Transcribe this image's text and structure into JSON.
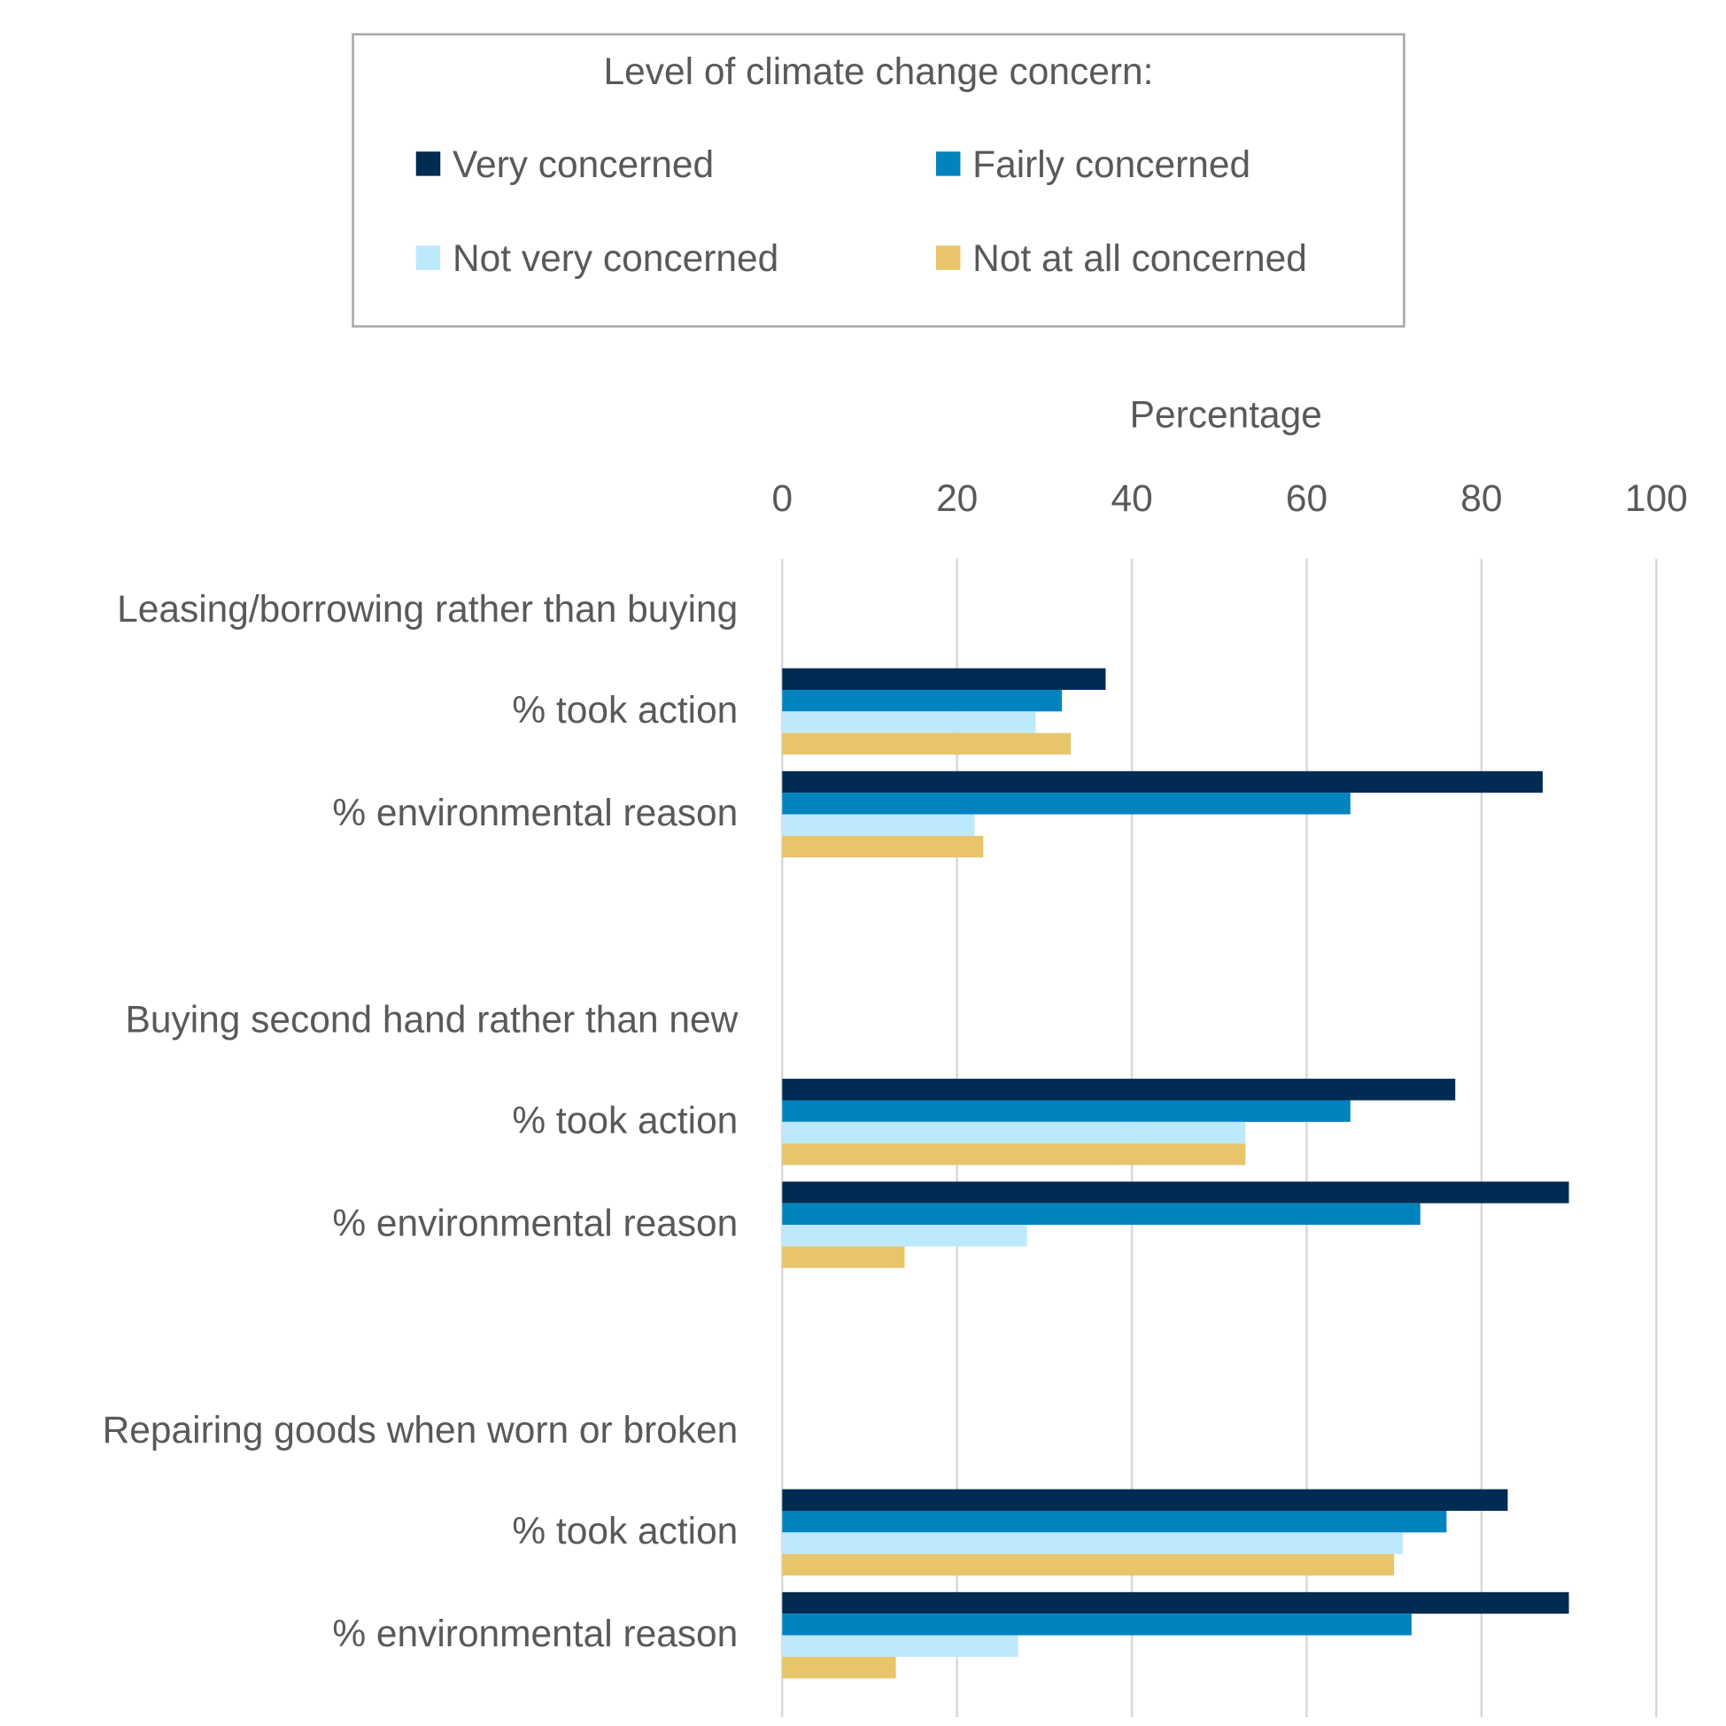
{
  "chart_data": {
    "type": "bar",
    "orientation": "horizontal",
    "xlabel": "Percentage",
    "xlim": [
      0,
      100
    ],
    "xticks": [
      "0",
      "20",
      "40",
      "60",
      "80",
      "100"
    ],
    "grid": true,
    "legend": {
      "title": "Level of climate change concern:",
      "placement": "top"
    },
    "groups": [
      {
        "label": "Leasing/borrowing rather than buying",
        "categories": [
          "% took action",
          "% environmental reason"
        ]
      },
      {
        "label": "Buying second hand rather than new",
        "categories": [
          "% took action",
          "% environmental reason"
        ]
      },
      {
        "label": "Repairing goods when worn or broken",
        "categories": [
          "% took action",
          "% environmental reason"
        ]
      }
    ],
    "series": [
      {
        "name": "Very concerned",
        "color": "#002b52",
        "values": [
          [
            37,
            87
          ],
          [
            77,
            90
          ],
          [
            83,
            90
          ]
        ]
      },
      {
        "name": "Fairly concerned",
        "color": "#0083be",
        "values": [
          [
            32,
            65
          ],
          [
            65,
            73
          ],
          [
            76,
            72
          ]
        ]
      },
      {
        "name": "Not very concerned",
        "color": "#bde9fc",
        "values": [
          [
            29,
            22
          ],
          [
            53,
            28
          ],
          [
            71,
            27
          ]
        ]
      },
      {
        "name": "Not at all concerned",
        "color": "#e8c46b",
        "values": [
          [
            33,
            23
          ],
          [
            53,
            14
          ],
          [
            70,
            13
          ]
        ]
      }
    ]
  }
}
